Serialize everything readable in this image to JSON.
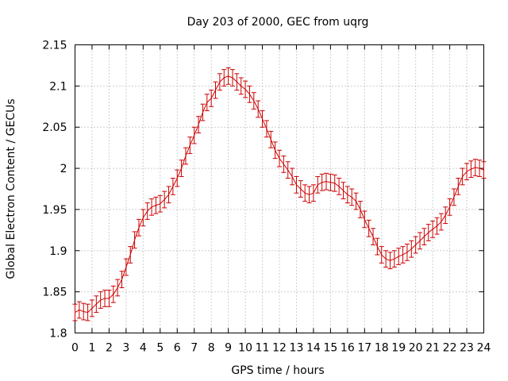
{
  "chart_data": {
    "type": "line",
    "title": "Day 203 of 2000, GEC from uqrg",
    "xlabel": "GPS time / hours",
    "ylabel": "Global Electron Content / GECUs",
    "xlim": [
      0,
      24
    ],
    "ylim": [
      1.8,
      2.15
    ],
    "grid": true,
    "legend": "none",
    "x_ticks": [
      0,
      1,
      2,
      3,
      4,
      5,
      6,
      7,
      8,
      9,
      10,
      11,
      12,
      13,
      14,
      15,
      16,
      17,
      18,
      19,
      20,
      21,
      22,
      23,
      24
    ],
    "x_tick_labels": [
      "0",
      "1",
      "2",
      "3",
      "4",
      "5",
      "6",
      "7",
      "8",
      "9",
      "10",
      "11",
      "12",
      "13",
      "14",
      "15",
      "16",
      "17",
      "18",
      "19",
      "20",
      "21",
      "22",
      "23",
      "24"
    ],
    "y_ticks": [
      1.8,
      1.85,
      1.9,
      1.95,
      2.0,
      2.05,
      2.1,
      2.15
    ],
    "y_tick_labels": [
      "1.8",
      "1.85",
      "1.9",
      "1.95",
      "2",
      "2.05",
      "2.1",
      "2.15"
    ],
    "series_color": "#cc0000",
    "error": 0.01,
    "series": [
      {
        "x": [
          0,
          0.25,
          0.5,
          0.75,
          1,
          1.25,
          1.5,
          1.75,
          2,
          2.25,
          2.5,
          2.75,
          3,
          3.25,
          3.5,
          3.75,
          4,
          4.25,
          4.5,
          4.75,
          5,
          5.25,
          5.5,
          5.75,
          6,
          6.25,
          6.5,
          6.75,
          7,
          7.25,
          7.5,
          7.75,
          8,
          8.25,
          8.5,
          8.75,
          9,
          9.25,
          9.5,
          9.75,
          10,
          10.25,
          10.5,
          10.75,
          11,
          11.25,
          11.5,
          11.75,
          12,
          12.25,
          12.5,
          12.75,
          13,
          13.25,
          13.5,
          13.75,
          14,
          14.25,
          14.5,
          14.75,
          15,
          15.25,
          15.5,
          15.75,
          16,
          16.25,
          16.5,
          16.75,
          17,
          17.25,
          17.5,
          17.75,
          18,
          18.25,
          18.5,
          18.75,
          19,
          19.25,
          19.5,
          19.75,
          20,
          20.25,
          20.5,
          20.75,
          21,
          21.25,
          21.5,
          21.75,
          22,
          22.25,
          22.5,
          22.75,
          23,
          23.25,
          23.5,
          23.75,
          24
        ],
        "values": [
          1.825,
          1.828,
          1.826,
          1.825,
          1.83,
          1.835,
          1.84,
          1.842,
          1.842,
          1.847,
          1.855,
          1.865,
          1.88,
          1.895,
          1.913,
          1.928,
          1.94,
          1.948,
          1.953,
          1.955,
          1.957,
          1.962,
          1.968,
          1.978,
          1.988,
          2.0,
          2.015,
          2.028,
          2.04,
          2.053,
          2.068,
          2.08,
          2.085,
          2.095,
          2.105,
          2.11,
          2.112,
          2.11,
          2.105,
          2.1,
          2.096,
          2.09,
          2.082,
          2.072,
          2.06,
          2.048,
          2.035,
          2.022,
          2.012,
          2.005,
          1.998,
          1.99,
          1.98,
          1.975,
          1.97,
          1.968,
          1.97,
          1.98,
          1.983,
          1.984,
          1.983,
          1.982,
          1.978,
          1.973,
          1.968,
          1.965,
          1.96,
          1.95,
          1.938,
          1.927,
          1.917,
          1.905,
          1.895,
          1.89,
          1.888,
          1.89,
          1.893,
          1.895,
          1.898,
          1.902,
          1.907,
          1.912,
          1.917,
          1.922,
          1.926,
          1.93,
          1.935,
          1.943,
          1.953,
          1.965,
          1.978,
          1.99,
          1.996,
          1.999,
          2.001,
          2.0,
          1.998
        ]
      }
    ]
  }
}
